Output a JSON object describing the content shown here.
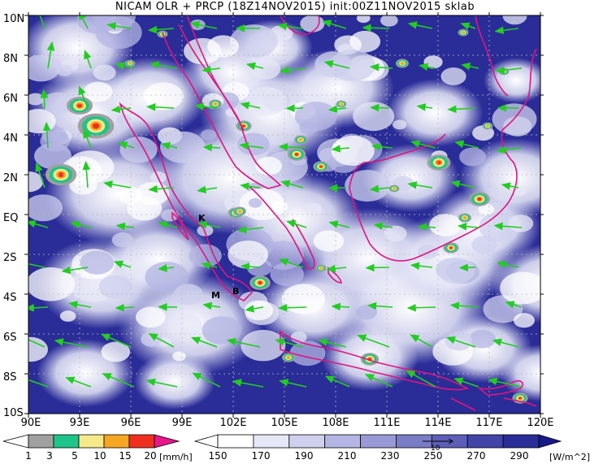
{
  "title": "NICAM OLR + PRCP (18Z14NOV2015) init:00Z11NOV2015 sklab",
  "map": {
    "lat_labels": [
      "10N",
      "8N",
      "6N",
      "4N",
      "2N",
      "EQ",
      "2S",
      "4S",
      "6S",
      "8S",
      "10S"
    ],
    "lon_labels": [
      "90E",
      "93E",
      "96E",
      "99E",
      "102E",
      "105E",
      "108E",
      "111E",
      "114E",
      "117E",
      "120E"
    ],
    "extent": {
      "lon": [
        90,
        120
      ],
      "lat": [
        -10,
        10
      ]
    },
    "coastline_color": "#e0157f",
    "wind_vector_color": "#22cc22",
    "grid": "dashed",
    "city_markers": [
      {
        "label": "K",
        "lon": 101.6,
        "lat": 0.0
      },
      {
        "label": "M",
        "lon": 101.4,
        "lat": -4.2
      },
      {
        "label": "B",
        "lon": 102.7,
        "lat": -4.0
      }
    ]
  },
  "precip_colorbar": {
    "ticks": [
      "1",
      "3",
      "5",
      "10",
      "15",
      "20"
    ],
    "unit": "[mm/h]",
    "colors": [
      "#a0a0a0",
      "#1ec48a",
      "#f5e98a",
      "#f5a623",
      "#f0301e",
      "#e8158c"
    ]
  },
  "olr_colorbar": {
    "ticks": [
      "150",
      "170",
      "190",
      "210",
      "230",
      "250",
      "270",
      "290"
    ],
    "unit": "[W/m^2]",
    "colors": [
      "#ffffff",
      "#e6e7f6",
      "#cfd0ee",
      "#b4b5e3",
      "#9899d6",
      "#7b7cc7",
      "#5d5eb8",
      "#4244a8",
      "#2a2c98",
      "#161a88"
    ],
    "reference_vector": "10"
  }
}
